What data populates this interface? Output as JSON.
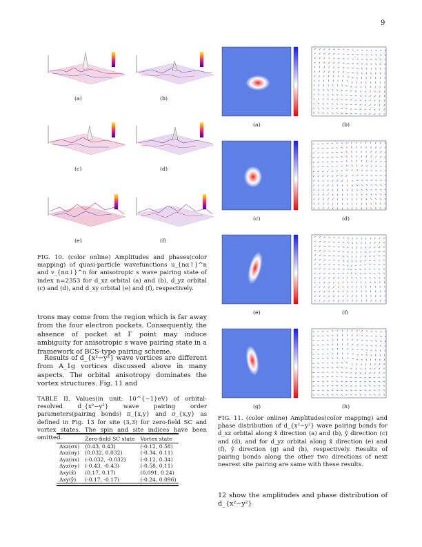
{
  "page_number": "9",
  "fig10": {
    "panel_labels": [
      "(a)",
      "(b)",
      "(c)",
      "(d)",
      "(e)",
      "(f)"
    ],
    "caption": "FIG. 10. (color online) Amplitudes and phases(color mapping) of quasi-particle wavefunctions u_{nα↑}^n and v_{nα↓}^n for anisotropic s wave pairing state of index n=2353 for d_xz orbital (a) and (b), d_yz orbital (c) and (d), and d_xy orbital (e) and (f), respectively."
  },
  "fig11": {
    "panel_labels": [
      "(a)",
      "(b)",
      "(c)",
      "(d)",
      "(e)",
      "(f)",
      "(g)",
      "(h)"
    ],
    "caption": "FIG. 11. (color online) Amplitudes(color mapping) and phase distribution of d_{x²−y²} wave pairing bonds for d_xz orbital along x̂ direction (a) and (b), ŷ direction (c) and (d), and for d_yz orbital along x̂ direction (e) and (f), ŷ direction (g) and (h), respectively. Results of pairing bonds along the other two directions of next nearest site pairing are same with these results."
  },
  "body_left": {
    "p1": "trons may come from the region which is far away from the four electron pockets. Consequently, the absence of pocket at Γ point may induce ambiguity for anisotropic s wave pairing state in a framework of BCS-type pairing scheme.",
    "p2": "Results of d_{x²−y²} wave vortices are different from A_1g vortices discussed above in many aspects. The orbital anisotropy dominates the vortex structures. Fig. 11 and"
  },
  "body_right": {
    "p1": "12 show the amplitudes and phase distribution of d_{x²−y²}"
  },
  "table2": {
    "caption": "TABLE II. Values(in unit: 10^{−1}eV) of orbital-resolved d_{x²−y²} wave pairing order parameters(pairing bonds) π_{x,y} and σ_{x,y} as defined in Fig. 13 for site (3,3) for zero-field SC and vortex states. The spin and site indices have been omitted.",
    "headers": [
      "",
      "Zero-field SC state",
      "Vortex state"
    ],
    "rows": [
      [
        "Δxz(σx)",
        "(0.43, 0.43)",
        "(-0.12, 0.58)"
      ],
      [
        "Δxz(πy)",
        "(0.032, 0.032)",
        "(-0.34, 0.11)"
      ],
      [
        "Δyz(πx)",
        "(-0.032, -0.032)",
        "(-0.12, 0.34)"
      ],
      [
        "Δyz(σy)",
        "(-0.43, -0.43)",
        "(-0.58, 0.11)"
      ],
      [
        "Δxy(x̂)",
        "(0.17, 0.17)",
        "(0.091, 0.24)"
      ],
      [
        "Δxy(ŷ)",
        "(-0.17, -0.17)",
        "(-0.24, 0.096)"
      ]
    ]
  }
}
